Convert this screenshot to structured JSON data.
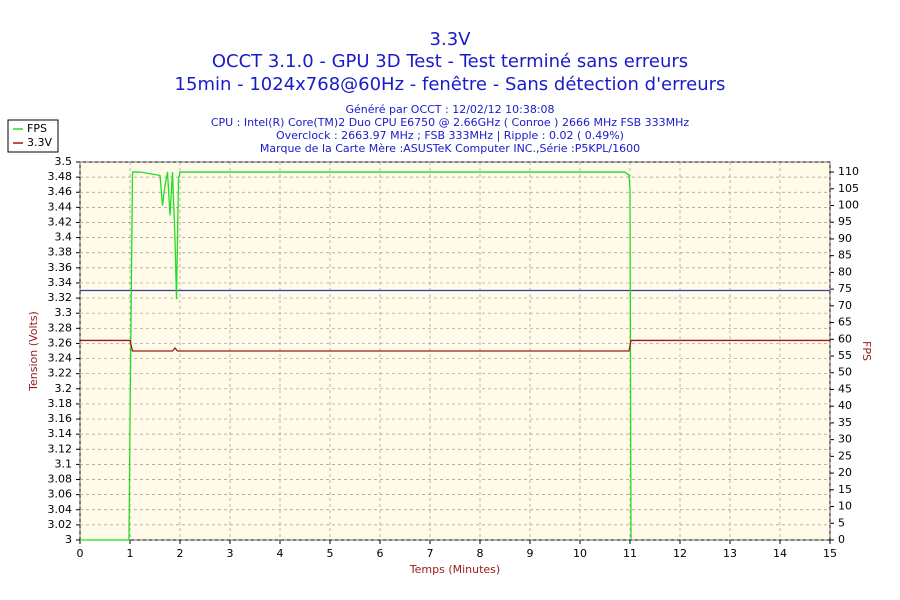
{
  "chart_data": {
    "type": "line",
    "title": "3.3V",
    "subtitle": [
      "OCCT 3.1.0 - GPU 3D Test - Test terminé sans erreurs",
      "15min - 1024x768@60Hz - fenêtre - Sans détection d'erreurs"
    ],
    "info": [
      "Généré par OCCT : 12/02/12 10:38:08",
      "CPU : Intel(R) Core(TM)2 Duo CPU E6750 @ 2.66GHz ( Conroe ) 2666 MHz FSB 333MHz",
      "Overclock : 2663.97 MHz ; FSB 333MHz | Ripple : 0.02 ( 0.49%)",
      "Marque de la Carte Mère :ASUSTeK Computer INC.,Série :P5KPL/1600"
    ],
    "xlabel": "Temps (Minutes)",
    "ylabel": "Tension (Volts)",
    "y2label": "FPS",
    "xlim": [
      0,
      15
    ],
    "xticks": [
      0,
      1,
      2,
      3,
      4,
      5,
      6,
      7,
      8,
      9,
      10,
      11,
      12,
      13,
      14,
      15
    ],
    "ylim": [
      3,
      3.5
    ],
    "yticks": [
      3,
      3.02,
      3.04,
      3.06,
      3.08,
      3.1,
      3.12,
      3.14,
      3.16,
      3.18,
      3.2,
      3.22,
      3.24,
      3.26,
      3.28,
      3.3,
      3.32,
      3.34,
      3.36,
      3.38,
      3.4,
      3.42,
      3.44,
      3.46,
      3.48,
      3.5
    ],
    "y2lim": [
      0,
      113
    ],
    "y2ticks": [
      0,
      5,
      10,
      15,
      20,
      25,
      30,
      35,
      40,
      45,
      50,
      55,
      60,
      65,
      70,
      75,
      80,
      85,
      90,
      95,
      100,
      105,
      110
    ],
    "grid": true,
    "legend": "top-left",
    "hlines": [
      {
        "value": 3.33,
        "color": "#3c3ca0"
      }
    ],
    "series": [
      {
        "name": "FPS",
        "color": "#22dd22",
        "axis": "y2",
        "x": [
          0,
          0.98,
          1.0,
          1.05,
          1.2,
          1.6,
          1.65,
          1.7,
          1.75,
          1.8,
          1.85,
          1.9,
          1.93,
          1.97,
          2.0,
          2.5,
          5,
          8,
          10.9,
          10.98,
          11.0,
          11.02
        ],
        "values": [
          0,
          0,
          35,
          110,
          110,
          109,
          100,
          106,
          110,
          97,
          110,
          90,
          72,
          108,
          110,
          110,
          110,
          110,
          110,
          109,
          105,
          0
        ]
      },
      {
        "name": "3.3V",
        "color": "#9a1a1a",
        "x": [
          0,
          1.0,
          1.05,
          1.85,
          1.9,
          1.95,
          10.98,
          11.02,
          15
        ],
        "values": [
          3.264,
          3.264,
          3.25,
          3.25,
          3.254,
          3.25,
          3.25,
          3.264,
          3.264
        ]
      }
    ]
  }
}
